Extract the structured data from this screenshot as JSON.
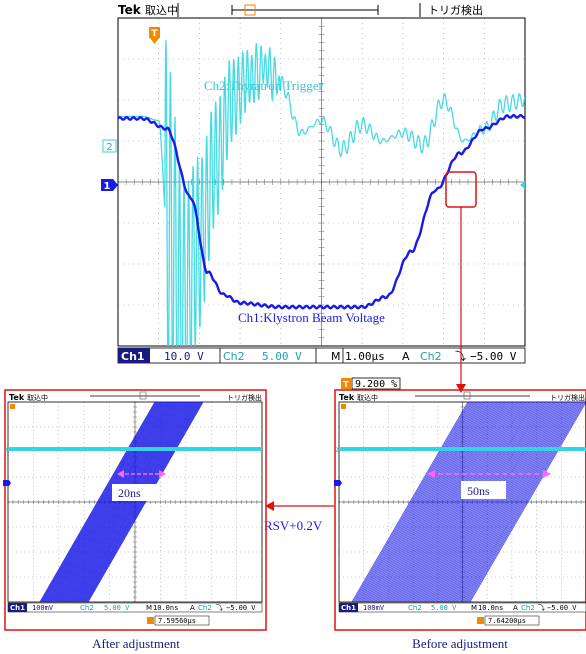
{
  "main_scope": {
    "brand": "Tek",
    "acq_status": "取込中",
    "trigger_status": "トリガ検出",
    "ch2_marker": "2",
    "ch1_marker": "1",
    "trigger_marker": "T",
    "ch2_label": "Ch2:Thyratron  Trigger",
    "ch1_label": "Ch1:Klystron Beam Voltage",
    "readout": {
      "ch1_name": "Ch1",
      "ch1_scale": "10.0 V",
      "ch2_name": "Ch2",
      "ch2_scale": "5.00 V",
      "time_key": "M",
      "time_scale": "1.00µs",
      "trig_key": "A",
      "trig_src": "Ch2",
      "trig_slope": "⤵",
      "trig_level": "−5.00 V"
    },
    "trigger_position": "9.200 %"
  },
  "left_scope": {
    "brand": "Tek",
    "acq_status": "取込中",
    "trigger_status": "トリガ検出",
    "ch2_marker": "2",
    "ch1_marker": "1",
    "width_label": "20ns",
    "readout": {
      "ch1_name": "Ch1",
      "ch1_scale": "100mV",
      "ch2_name": "Ch2",
      "ch2_scale": "5.00 V",
      "time_key": "M",
      "time_scale": "10.0ns",
      "trig_key": "A",
      "trig_src": "Ch2",
      "trig_slope": "⤵",
      "trig_level": "−5.00 V"
    },
    "trigger_time": "7.59560µs",
    "caption": "After adjustment"
  },
  "right_scope": {
    "brand": "Tek",
    "acq_status": "取込中",
    "trigger_status": "トリガ検出",
    "ch2_marker": "2",
    "ch1_marker": "1",
    "width_label": "50ns",
    "readout": {
      "ch1_name": "Ch1",
      "ch1_scale": "100mV",
      "ch2_name": "Ch2",
      "ch2_scale": "5.00 V",
      "time_key": "M",
      "time_scale": "10.0ns",
      "trig_key": "A",
      "trig_src": "Ch2",
      "trig_slope": "⤵",
      "trig_level": "−5.00 V"
    },
    "trigger_time": "7.64200µs",
    "caption": "Before adjustment"
  },
  "arrow_label": "RSV+0.2V",
  "colors": {
    "ch1": "#1a1ae6",
    "ch2": "#33d6e0",
    "highlight": "#e01010",
    "trigger": "#f08a00",
    "marker_pink": "#ff66ff"
  },
  "chart_data": [
    {
      "type": "line",
      "title": "",
      "xlabel": "",
      "ylabel": "",
      "x_unit": "div",
      "y_unit": "div",
      "xlim": [
        0,
        10
      ],
      "ylim": [
        -4,
        4
      ],
      "grid": true,
      "series": [
        {
          "name": "Ch1:Klystron Beam Voltage",
          "x": [
            0,
            0.6,
            1.2,
            1.8,
            2.2,
            2.6,
            3.0,
            4.0,
            5.0,
            6.0,
            6.6,
            7.2,
            7.8,
            8.4,
            9.0,
            9.6,
            10
          ],
          "y": [
            1.55,
            1.55,
            1.3,
            -0.4,
            -2.2,
            -2.75,
            -2.95,
            -3.05,
            -3.05,
            -3.05,
            -2.8,
            -1.7,
            -0.2,
            0.7,
            1.3,
            1.6,
            1.6
          ]
        },
        {
          "name": "Ch2:Thyratron  Trigger",
          "x": [
            0,
            0.6,
            1.0,
            1.2,
            1.6,
            2.0,
            2.4,
            2.8,
            3.2,
            3.6,
            4.0,
            4.5,
            5.0,
            5.5,
            6.0,
            6.5,
            7.0,
            7.5,
            8.0,
            8.5,
            9.0,
            9.5,
            10
          ],
          "y": [
            1.6,
            1.6,
            1.5,
            -1.0,
            -3.0,
            -1.5,
            0.5,
            2.0,
            2.5,
            2.8,
            2.4,
            1.2,
            1.5,
            0.8,
            1.4,
            1.0,
            1.2,
            0.9,
            2.0,
            1.0,
            1.3,
            1.9,
            2.0
          ]
        }
      ]
    },
    {
      "type": "line",
      "title": "",
      "series_note_key": "After adjustment",
      "x_unit": "div",
      "y_unit": "div",
      "xlim": [
        0,
        10
      ],
      "ylim": [
        -4,
        4
      ],
      "grid": true,
      "band_width_ns": 20,
      "series": [
        {
          "name": "Ch2",
          "x": [
            0,
            10
          ],
          "y": [
            1.8,
            1.8
          ]
        }
      ]
    },
    {
      "type": "line",
      "title": "",
      "series_note_key": "Before adjustment",
      "x_unit": "div",
      "y_unit": "div",
      "xlim": [
        0,
        10
      ],
      "ylim": [
        -4,
        4
      ],
      "grid": true,
      "band_width_ns": 50,
      "series": [
        {
          "name": "Ch2",
          "x": [
            0,
            10
          ],
          "y": [
            1.8,
            1.8
          ]
        }
      ]
    }
  ]
}
